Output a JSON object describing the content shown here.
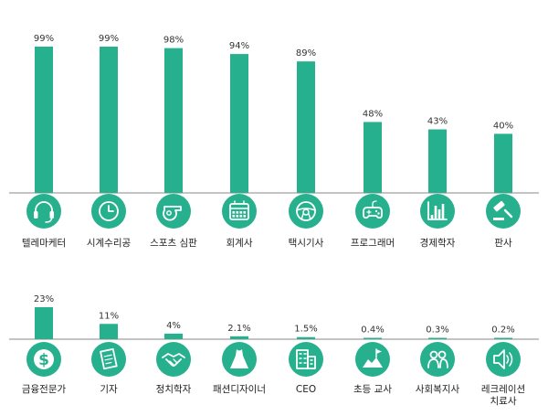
{
  "colors": {
    "bar": "#27b08d",
    "icon_bg": "#27b08d",
    "icon_fg": "#ffffff",
    "axis": "#8a8a8a"
  },
  "chart_data": [
    {
      "type": "bar",
      "title": "",
      "xlabel": "",
      "ylabel": "",
      "ylim": [
        0,
        100
      ],
      "categories": [
        "텔레마케터",
        "시계수리공",
        "스포츠 심판",
        "회계사",
        "택시기사",
        "프로그래머",
        "경제학자",
        "판사"
      ],
      "values": [
        99,
        99,
        98,
        94,
        89,
        48,
        43,
        40
      ],
      "value_labels": [
        "99%",
        "99%",
        "98%",
        "94%",
        "89%",
        "48%",
        "43%",
        "40%"
      ],
      "icons": [
        "headset-icon",
        "clock-icon",
        "whistle-icon",
        "calculator-icon",
        "steering-wheel-icon",
        "gamepad-icon",
        "bar-chart-icon",
        "gavel-icon"
      ]
    },
    {
      "type": "bar",
      "title": "",
      "xlabel": "",
      "ylabel": "",
      "ylim": [
        0,
        100
      ],
      "categories": [
        "금융전문가",
        "기자",
        "정치학자",
        "패션디자이너",
        "CEO",
        "초등 교사",
        "사회복지사",
        "레크레이션 치료사"
      ],
      "category_lines": [
        [
          "금융전문가"
        ],
        [
          "기자"
        ],
        [
          "정치학자"
        ],
        [
          "패션디자이너"
        ],
        [
          "CEO"
        ],
        [
          "초등 교사"
        ],
        [
          "사회복지사"
        ],
        [
          "레크레이션",
          "치료사"
        ]
      ],
      "values": [
        23,
        11,
        4,
        2.1,
        1.5,
        0.4,
        0.3,
        0.2
      ],
      "value_labels": [
        "23%",
        "11%",
        "4%",
        "2.1%",
        "1.5%",
        "0.4%",
        "0.3%",
        "0.2%"
      ],
      "icons": [
        "globe-dollar-icon",
        "newspaper-icon",
        "handshake-icon",
        "dress-icon",
        "building-icon",
        "flag-hill-icon",
        "people-icon",
        "speaker-icon"
      ]
    }
  ]
}
